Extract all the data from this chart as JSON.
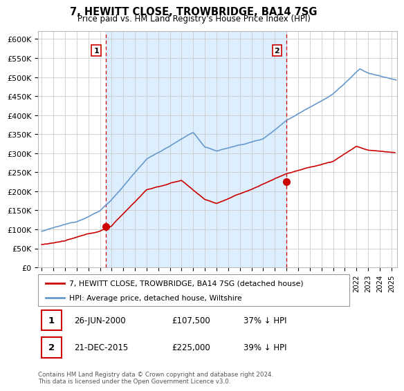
{
  "title": "7, HEWITT CLOSE, TROWBRIDGE, BA14 7SG",
  "subtitle": "Price paid vs. HM Land Registry's House Price Index (HPI)",
  "ylim": [
    0,
    620000
  ],
  "yticks": [
    0,
    50000,
    100000,
    150000,
    200000,
    250000,
    300000,
    350000,
    400000,
    450000,
    500000,
    550000,
    600000
  ],
  "yticklabels": [
    "£0",
    "£50K",
    "£100K",
    "£150K",
    "£200K",
    "£250K",
    "£300K",
    "£350K",
    "£400K",
    "£450K",
    "£500K",
    "£550K",
    "£600K"
  ],
  "xlim": [
    1994.7,
    2025.5
  ],
  "transaction_color": "#cc0000",
  "hpi_color": "#6699cc",
  "hpi_fill_color": "#ddeeff",
  "transaction_label": "7, HEWITT CLOSE, TROWBRIDGE, BA14 7SG (detached house)",
  "hpi_label": "HPI: Average price, detached house, Wiltshire",
  "marker1_date": 2000.48,
  "marker1_value": 107500,
  "marker2_date": 2015.97,
  "marker2_value": 225000,
  "vline_color": "#cc0000",
  "vline_style": "--",
  "grid_color": "#cccccc",
  "background_color": "#ffffff",
  "marker1_text": "26-JUN-2000",
  "marker1_price": "£107,500",
  "marker1_pct": "37% ↓ HPI",
  "marker2_text": "21-DEC-2015",
  "marker2_price": "£225,000",
  "marker2_pct": "39% ↓ HPI",
  "footer": "Contains HM Land Registry data © Crown copyright and database right 2024.\nThis data is licensed under the Open Government Licence v3.0."
}
